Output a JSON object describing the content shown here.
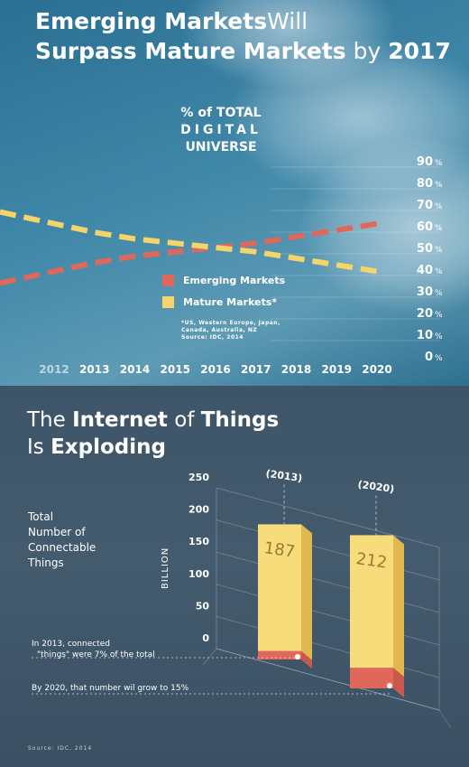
{
  "top": {
    "title_line1_bold": "Emerging Markets",
    "title_line1_light": "Will",
    "title_line2_bold": "Surpass Mature Markets",
    "title_line2_light": "by",
    "title_line2_year": "2017",
    "chart_title_line1": "% of TOTAL",
    "chart_title_line2": "DIGITAL",
    "chart_title_line3": "UNIVERSE",
    "legend_emerging": "Emerging Markets",
    "legend_mature": "Mature Markets*",
    "footnote_line1": "*US, Western Europe, Japan,",
    "footnote_line2": "Canada, Australia, NZ",
    "footnote_line3": "Source: IDC, 2014",
    "pct_suffix": "%"
  },
  "bottom": {
    "title_line1_light_a": "The",
    "title_line1_bold_a": "Internet",
    "title_line1_light_b": "of",
    "title_line1_bold_b": "Things",
    "title_line2_light": "Is",
    "title_line2_bold": "Exploding",
    "side_line1": "Total",
    "side_line2": "Number of",
    "side_line3": "Connectable",
    "side_line4": "Things",
    "yaxis_label": "BILLION",
    "note_2013_line1": "In 2013, connected",
    "note_2013_line2": "\"things\" were 7% of the total",
    "note_2020": "By 2020, that number wil grow to 15%",
    "source": "Source: IDC, 2014"
  },
  "colors": {
    "emerging": "#e0685a",
    "mature": "#f5d46a",
    "bar_fill": "#f7dc7c",
    "bar_side": "#e0b84f"
  },
  "chart_data": [
    {
      "type": "line",
      "title": "% of TOTAL DIGITAL UNIVERSE",
      "x": [
        "2012",
        "2013",
        "2014",
        "2015",
        "2016",
        "2017",
        "2018",
        "2019",
        "2020"
      ],
      "ylim": [
        0,
        90
      ],
      "yticks": [
        "0",
        "10",
        "20",
        "30",
        "40",
        "50",
        "60",
        "70",
        "80",
        "90"
      ],
      "series": [
        {
          "name": "Emerging Markets",
          "values": [
            39,
            43,
            46,
            48,
            50,
            52,
            55,
            58,
            61
          ],
          "style": "dashed"
        },
        {
          "name": "Mature Markets*",
          "values": [
            61,
            57,
            54,
            52,
            50,
            48,
            45,
            42,
            39
          ],
          "style": "dashed"
        }
      ],
      "legend": "center"
    },
    {
      "type": "bar",
      "categories": [
        "(2013)",
        "(2020)"
      ],
      "values": [
        187,
        212
      ],
      "share_connected_pct": [
        7,
        15
      ],
      "ylabel": "BILLION",
      "ylim": [
        0,
        250
      ],
      "yticks": [
        "0",
        "50",
        "100",
        "150",
        "200",
        "250"
      ]
    }
  ]
}
